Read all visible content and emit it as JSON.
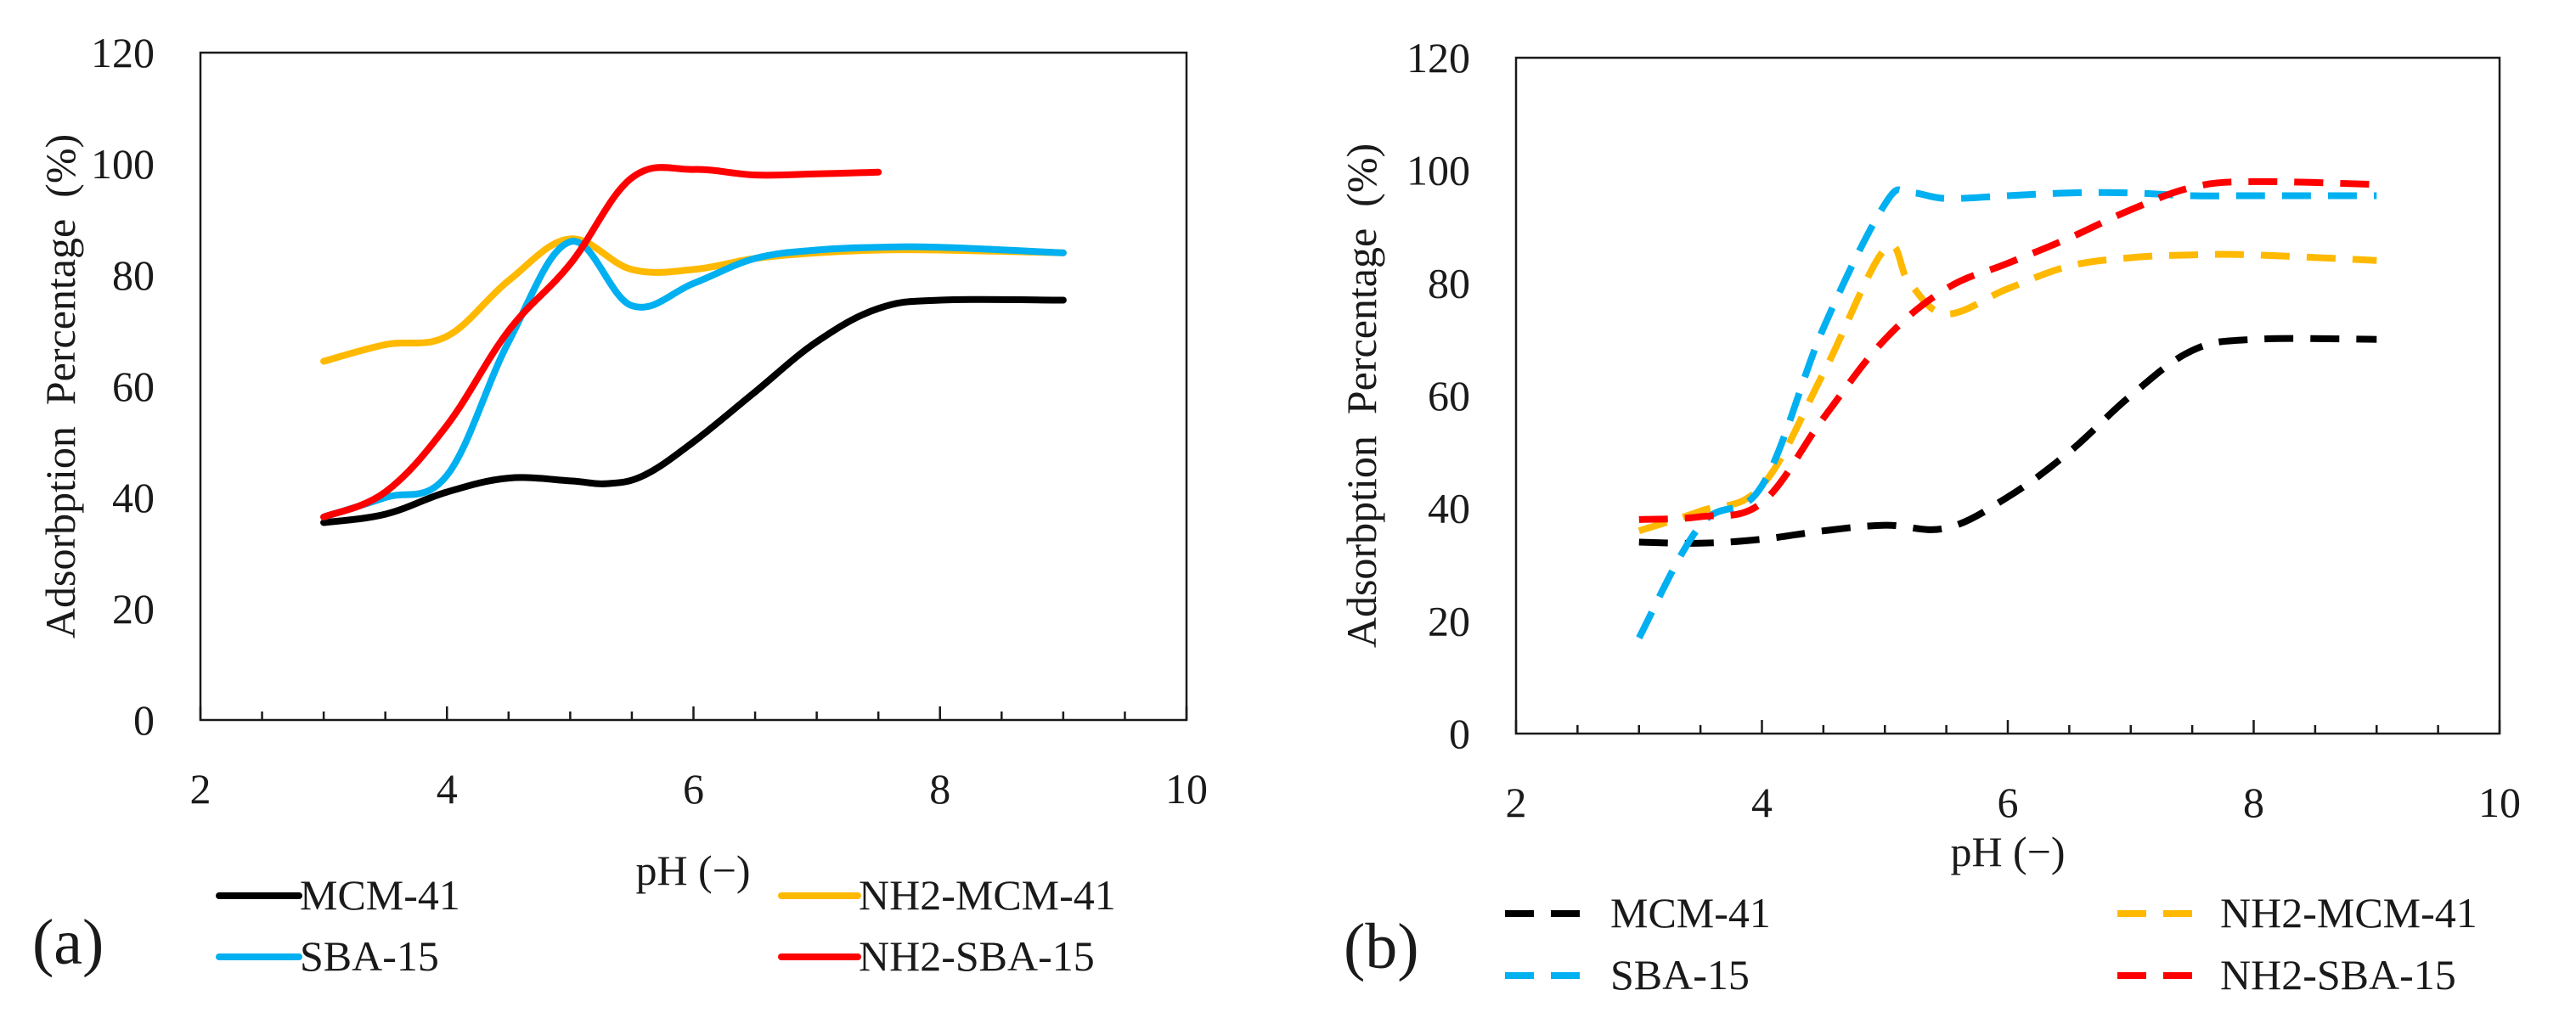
{
  "chart_data": [
    {
      "type": "line",
      "panel_label": "(a)",
      "line_style": "solid",
      "xlabel": "pH (−)",
      "ylabel": "Adsorbption  Percentage  (%)",
      "xlim": [
        2,
        10
      ],
      "ylim": [
        0,
        120
      ],
      "xticks": [
        2,
        4,
        6,
        8,
        10
      ],
      "yticks": [
        0,
        20,
        40,
        60,
        80,
        100,
        120
      ],
      "series": [
        {
          "name": "MCM-41",
          "color": "#000000",
          "x": [
            3,
            3.5,
            4,
            4.5,
            5,
            5.3,
            5.6,
            6,
            6.5,
            7,
            7.5,
            8,
            9
          ],
          "y": [
            35.5,
            37,
            41,
            43.5,
            43,
            42.5,
            44,
            50,
            59,
            68,
            74,
            75.5,
            75.5
          ]
        },
        {
          "name": "NH2-MCM-41",
          "color": "#FFB900",
          "x": [
            3,
            3.5,
            4,
            4.5,
            5,
            5.5,
            6,
            6.5,
            7,
            7.5,
            8,
            9
          ],
          "y": [
            64.5,
            67.5,
            69,
            79,
            86.5,
            81,
            81,
            83,
            84,
            84.5,
            84.5,
            84
          ]
        },
        {
          "name": "SBA-15",
          "color": "#00B0F0",
          "x": [
            3,
            3.5,
            4,
            4.5,
            5,
            5.5,
            6,
            6.5,
            7,
            7.5,
            8,
            9
          ],
          "y": [
            36.5,
            40,
            44,
            68,
            86,
            74.5,
            78.5,
            83,
            84.5,
            85,
            85,
            84
          ]
        },
        {
          "name": "NH2-SBA-15",
          "color": "#FF0000",
          "x": [
            3,
            3.5,
            4,
            4.5,
            5,
            5.5,
            6,
            6.5,
            7,
            7.5
          ],
          "y": [
            36.5,
            41,
            53,
            70,
            82,
            97.5,
            99,
            98,
            98.2,
            98.5
          ]
        }
      ]
    },
    {
      "type": "line",
      "panel_label": "(b)",
      "line_style": "dashed",
      "xlabel": "pH (−)",
      "ylabel": "Adsorbption  Percentage  (%)",
      "xlim": [
        2,
        10
      ],
      "ylim": [
        0,
        120
      ],
      "xticks": [
        2,
        4,
        6,
        8,
        10
      ],
      "yticks": [
        0,
        20,
        40,
        60,
        80,
        100,
        120
      ],
      "series": [
        {
          "name": "MCM-41",
          "color": "#000000",
          "x": [
            3,
            3.5,
            4,
            4.5,
            5,
            5.5,
            6,
            6.5,
            7,
            7.5,
            8,
            9
          ],
          "y": [
            34,
            33.8,
            34.5,
            36,
            37,
            36.5,
            42,
            50,
            60,
            68,
            70,
            70
          ]
        },
        {
          "name": "NH2-MCM-41",
          "color": "#FFB900",
          "x": [
            3,
            3.5,
            4,
            4.5,
            5,
            5.2,
            5.5,
            6,
            6.5,
            7,
            7.5,
            8,
            9
          ],
          "y": [
            36,
            39.5,
            44,
            64,
            86,
            80,
            74.5,
            79,
            83,
            84.5,
            85,
            85,
            84
          ]
        },
        {
          "name": "SBA-15",
          "color": "#00B0F0",
          "x": [
            3,
            3.5,
            4,
            4.5,
            5,
            5.2,
            5.5,
            6,
            6.5,
            7,
            7.5,
            8,
            9
          ],
          "y": [
            17,
            37,
            44,
            72,
            94,
            96,
            95,
            95.5,
            96,
            96,
            95.5,
            95.5,
            95.5
          ]
        },
        {
          "name": "NH2-SBA-15",
          "color": "#FF0000",
          "x": [
            3,
            3.5,
            4,
            4.5,
            5,
            5.5,
            6,
            6.5,
            7,
            7.5,
            8,
            9
          ],
          "y": [
            38,
            38.5,
            41,
            56,
            70,
            79,
            83.5,
            88,
            93,
            97,
            98,
            97.5
          ]
        }
      ]
    }
  ]
}
